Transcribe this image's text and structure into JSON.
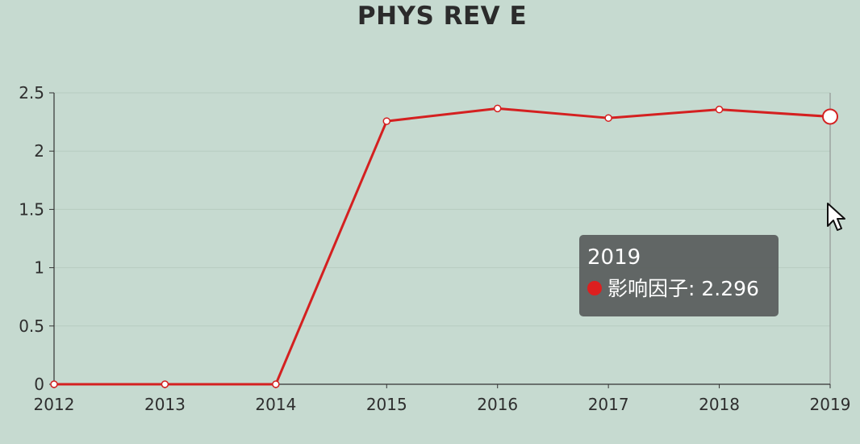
{
  "chart_data": {
    "type": "line",
    "title": "PHYS REV E",
    "x": [
      "2012",
      "2013",
      "2014",
      "2015",
      "2016",
      "2017",
      "2018",
      "2019"
    ],
    "series": [
      {
        "name": "影响因子",
        "values": [
          0,
          0,
          0,
          2.257,
          2.366,
          2.284,
          2.357,
          2.296
        ]
      }
    ],
    "ylim": [
      0,
      2.5
    ],
    "yticks": [
      "0",
      "0.5",
      "1",
      "1.5",
      "2",
      "2.5"
    ],
    "grid": true,
    "line_color": "#d42020",
    "highlighted_index": 7
  },
  "tooltip": {
    "title": "2019",
    "label": "影响因子",
    "separator": ": ",
    "value": "2.296"
  },
  "colors": {
    "background": "#c6dad0",
    "line": "#d42020",
    "axis": "#333333",
    "tooltip_bg": "#5a5f5d",
    "marker": "#dd1f1f"
  }
}
